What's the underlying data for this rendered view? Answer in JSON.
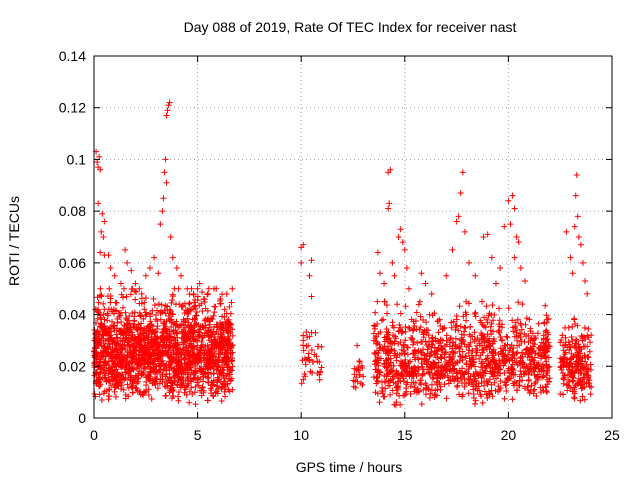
{
  "chart_data": {
    "type": "scatter",
    "title": "Day 088 of 2019, Rate Of TEC Index for receiver nast",
    "xlabel": "GPS time / hours",
    "ylabel": "ROTI / TECUs",
    "xlim": [
      0,
      25
    ],
    "ylim": [
      0,
      0.14
    ],
    "xticks": [
      0,
      5,
      10,
      15,
      20,
      25
    ],
    "yticks": [
      0,
      0.02,
      0.04,
      0.06,
      0.08,
      0.1,
      0.12,
      0.14
    ],
    "grid": true,
    "marker": "+",
    "color": "#ff0000",
    "clusters": [
      {
        "x": [
          0.0,
          6.7
        ],
        "y": [
          0.005,
          0.05
        ],
        "count": 1800,
        "density": "high"
      },
      {
        "x": [
          10.0,
          11.0
        ],
        "y": [
          0.01,
          0.035
        ],
        "count": 40,
        "density": "low"
      },
      {
        "x": [
          12.5,
          13.0
        ],
        "y": [
          0.01,
          0.028
        ],
        "count": 20,
        "density": "low"
      },
      {
        "x": [
          13.5,
          16.5
        ],
        "y": [
          0.003,
          0.045
        ],
        "count": 420,
        "density": "medium"
      },
      {
        "x": [
          16.5,
          22.0
        ],
        "y": [
          0.005,
          0.045
        ],
        "count": 750,
        "density": "high"
      },
      {
        "x": [
          22.5,
          24.0
        ],
        "y": [
          0.005,
          0.04
        ],
        "count": 220,
        "density": "medium"
      }
    ],
    "points": [
      [
        0.1,
        0.103
      ],
      [
        0.15,
        0.099
      ],
      [
        0.2,
        0.097
      ],
      [
        0.25,
        0.101
      ],
      [
        0.3,
        0.096
      ],
      [
        0.2,
        0.083
      ],
      [
        0.35,
        0.072
      ],
      [
        0.4,
        0.079
      ],
      [
        0.5,
        0.076
      ],
      [
        0.45,
        0.07
      ],
      [
        0.3,
        0.064
      ],
      [
        0.5,
        0.063
      ],
      [
        0.7,
        0.063
      ],
      [
        0.8,
        0.058
      ],
      [
        1.0,
        0.055
      ],
      [
        1.3,
        0.052
      ],
      [
        1.5,
        0.065
      ],
      [
        1.6,
        0.06
      ],
      [
        1.8,
        0.057
      ],
      [
        2.0,
        0.052
      ],
      [
        2.3,
        0.048
      ],
      [
        2.5,
        0.055
      ],
      [
        2.7,
        0.058
      ],
      [
        2.9,
        0.062
      ],
      [
        3.1,
        0.056
      ],
      [
        3.2,
        0.075
      ],
      [
        3.3,
        0.08
      ],
      [
        3.35,
        0.085
      ],
      [
        3.4,
        0.095
      ],
      [
        3.45,
        0.1
      ],
      [
        3.5,
        0.091
      ],
      [
        3.5,
        0.117
      ],
      [
        3.55,
        0.119
      ],
      [
        3.6,
        0.121
      ],
      [
        3.65,
        0.122
      ],
      [
        3.7,
        0.07
      ],
      [
        3.8,
        0.062
      ],
      [
        4.0,
        0.058
      ],
      [
        4.2,
        0.055
      ],
      [
        4.5,
        0.05
      ],
      [
        4.8,
        0.048
      ],
      [
        5.0,
        0.05
      ],
      [
        5.1,
        0.052
      ],
      [
        5.3,
        0.046
      ],
      [
        5.5,
        0.048
      ],
      [
        5.9,
        0.05
      ],
      [
        6.1,
        0.046
      ],
      [
        6.3,
        0.042
      ],
      [
        6.5,
        0.038
      ],
      [
        10.0,
        0.066
      ],
      [
        10.1,
        0.067
      ],
      [
        10.0,
        0.06
      ],
      [
        10.5,
        0.061
      ],
      [
        10.4,
        0.055
      ],
      [
        10.5,
        0.047
      ],
      [
        10.1,
        0.03
      ],
      [
        10.5,
        0.033
      ],
      [
        12.7,
        0.028
      ],
      [
        12.8,
        0.022
      ],
      [
        13.7,
        0.064
      ],
      [
        13.8,
        0.056
      ],
      [
        14.0,
        0.052
      ],
      [
        14.2,
        0.081
      ],
      [
        14.25,
        0.083
      ],
      [
        14.2,
        0.095
      ],
      [
        14.3,
        0.096
      ],
      [
        14.4,
        0.06
      ],
      [
        14.5,
        0.055
      ],
      [
        14.7,
        0.07
      ],
      [
        14.8,
        0.073
      ],
      [
        14.9,
        0.068
      ],
      [
        15.0,
        0.065
      ],
      [
        15.1,
        0.058
      ],
      [
        15.2,
        0.05
      ],
      [
        15.8,
        0.056
      ],
      [
        16.0,
        0.052
      ],
      [
        16.3,
        0.048
      ],
      [
        17.0,
        0.055
      ],
      [
        17.3,
        0.065
      ],
      [
        17.5,
        0.076
      ],
      [
        17.6,
        0.078
      ],
      [
        17.8,
        0.095
      ],
      [
        17.7,
        0.087
      ],
      [
        17.9,
        0.072
      ],
      [
        18.1,
        0.06
      ],
      [
        18.4,
        0.055
      ],
      [
        18.8,
        0.07
      ],
      [
        19.0,
        0.071
      ],
      [
        19.2,
        0.062
      ],
      [
        19.4,
        0.052
      ],
      [
        19.6,
        0.058
      ],
      [
        19.8,
        0.074
      ],
      [
        20.0,
        0.084
      ],
      [
        20.2,
        0.086
      ],
      [
        20.3,
        0.081
      ],
      [
        20.1,
        0.075
      ],
      [
        20.4,
        0.07
      ],
      [
        20.5,
        0.068
      ],
      [
        20.3,
        0.062
      ],
      [
        20.6,
        0.058
      ],
      [
        20.8,
        0.053
      ],
      [
        22.8,
        0.072
      ],
      [
        23.0,
        0.062
      ],
      [
        23.1,
        0.056
      ],
      [
        23.2,
        0.074
      ],
      [
        23.3,
        0.094
      ],
      [
        23.25,
        0.086
      ],
      [
        23.35,
        0.078
      ],
      [
        23.4,
        0.07
      ],
      [
        23.5,
        0.067
      ],
      [
        23.6,
        0.06
      ],
      [
        23.7,
        0.053
      ],
      [
        23.8,
        0.048
      ]
    ]
  }
}
